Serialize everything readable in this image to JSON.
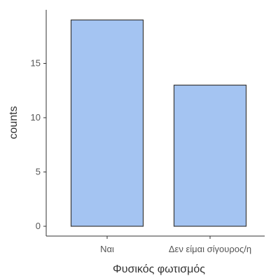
{
  "chart_data": {
    "type": "bar",
    "categories": [
      "Ναι",
      "Δεν είμαι σίγουρος/η"
    ],
    "values": [
      19,
      13
    ],
    "title": "",
    "xlabel": "Φυσικός φωτισμός",
    "ylabel": "counts",
    "ylim": [
      0,
      20
    ],
    "yticks": [
      0,
      5,
      10,
      15
    ],
    "grid": false,
    "bar_color": "#a4c4f2",
    "bar_edge_color": "#3a3a3a",
    "axis_color": "#333333"
  }
}
